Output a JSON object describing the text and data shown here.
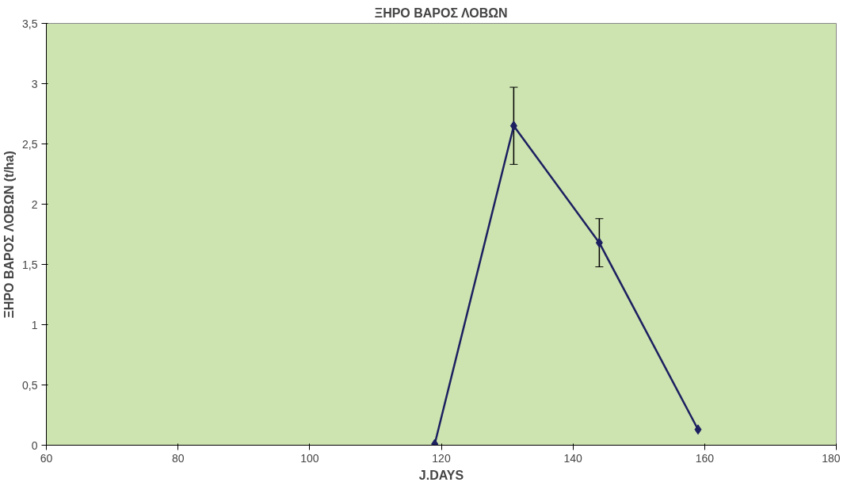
{
  "chart_data": {
    "type": "line",
    "title": "ΞΗΡΟ ΒΑΡΟΣ ΛΟΒΩΝ",
    "xlabel": "J.DAYS",
    "ylabel": "ΞΗΡΟ ΒΑΡΟΣ ΛΟΒΩΝ (t/ha)",
    "x": [
      119,
      131,
      144,
      159
    ],
    "series": [
      {
        "color": "#1c2060",
        "values": [
          0.01,
          2.65,
          1.68,
          0.13
        ],
        "errors": [
          null,
          0.32,
          0.2,
          null
        ]
      }
    ],
    "xlim": [
      60,
      180
    ],
    "xticks": [
      60,
      80,
      100,
      120,
      140,
      160,
      180
    ],
    "ylim": [
      0,
      3.5
    ],
    "yticks": [
      0,
      {
        "value": 0.5,
        "label": "0,5"
      },
      1,
      {
        "value": 1.5,
        "label": "1,5"
      },
      2,
      {
        "value": 2.5,
        "label": "2,5"
      },
      3,
      {
        "value": 3.5,
        "label": "3,5"
      }
    ],
    "grid": false,
    "marker": "diamond",
    "line_style": "solid"
  }
}
